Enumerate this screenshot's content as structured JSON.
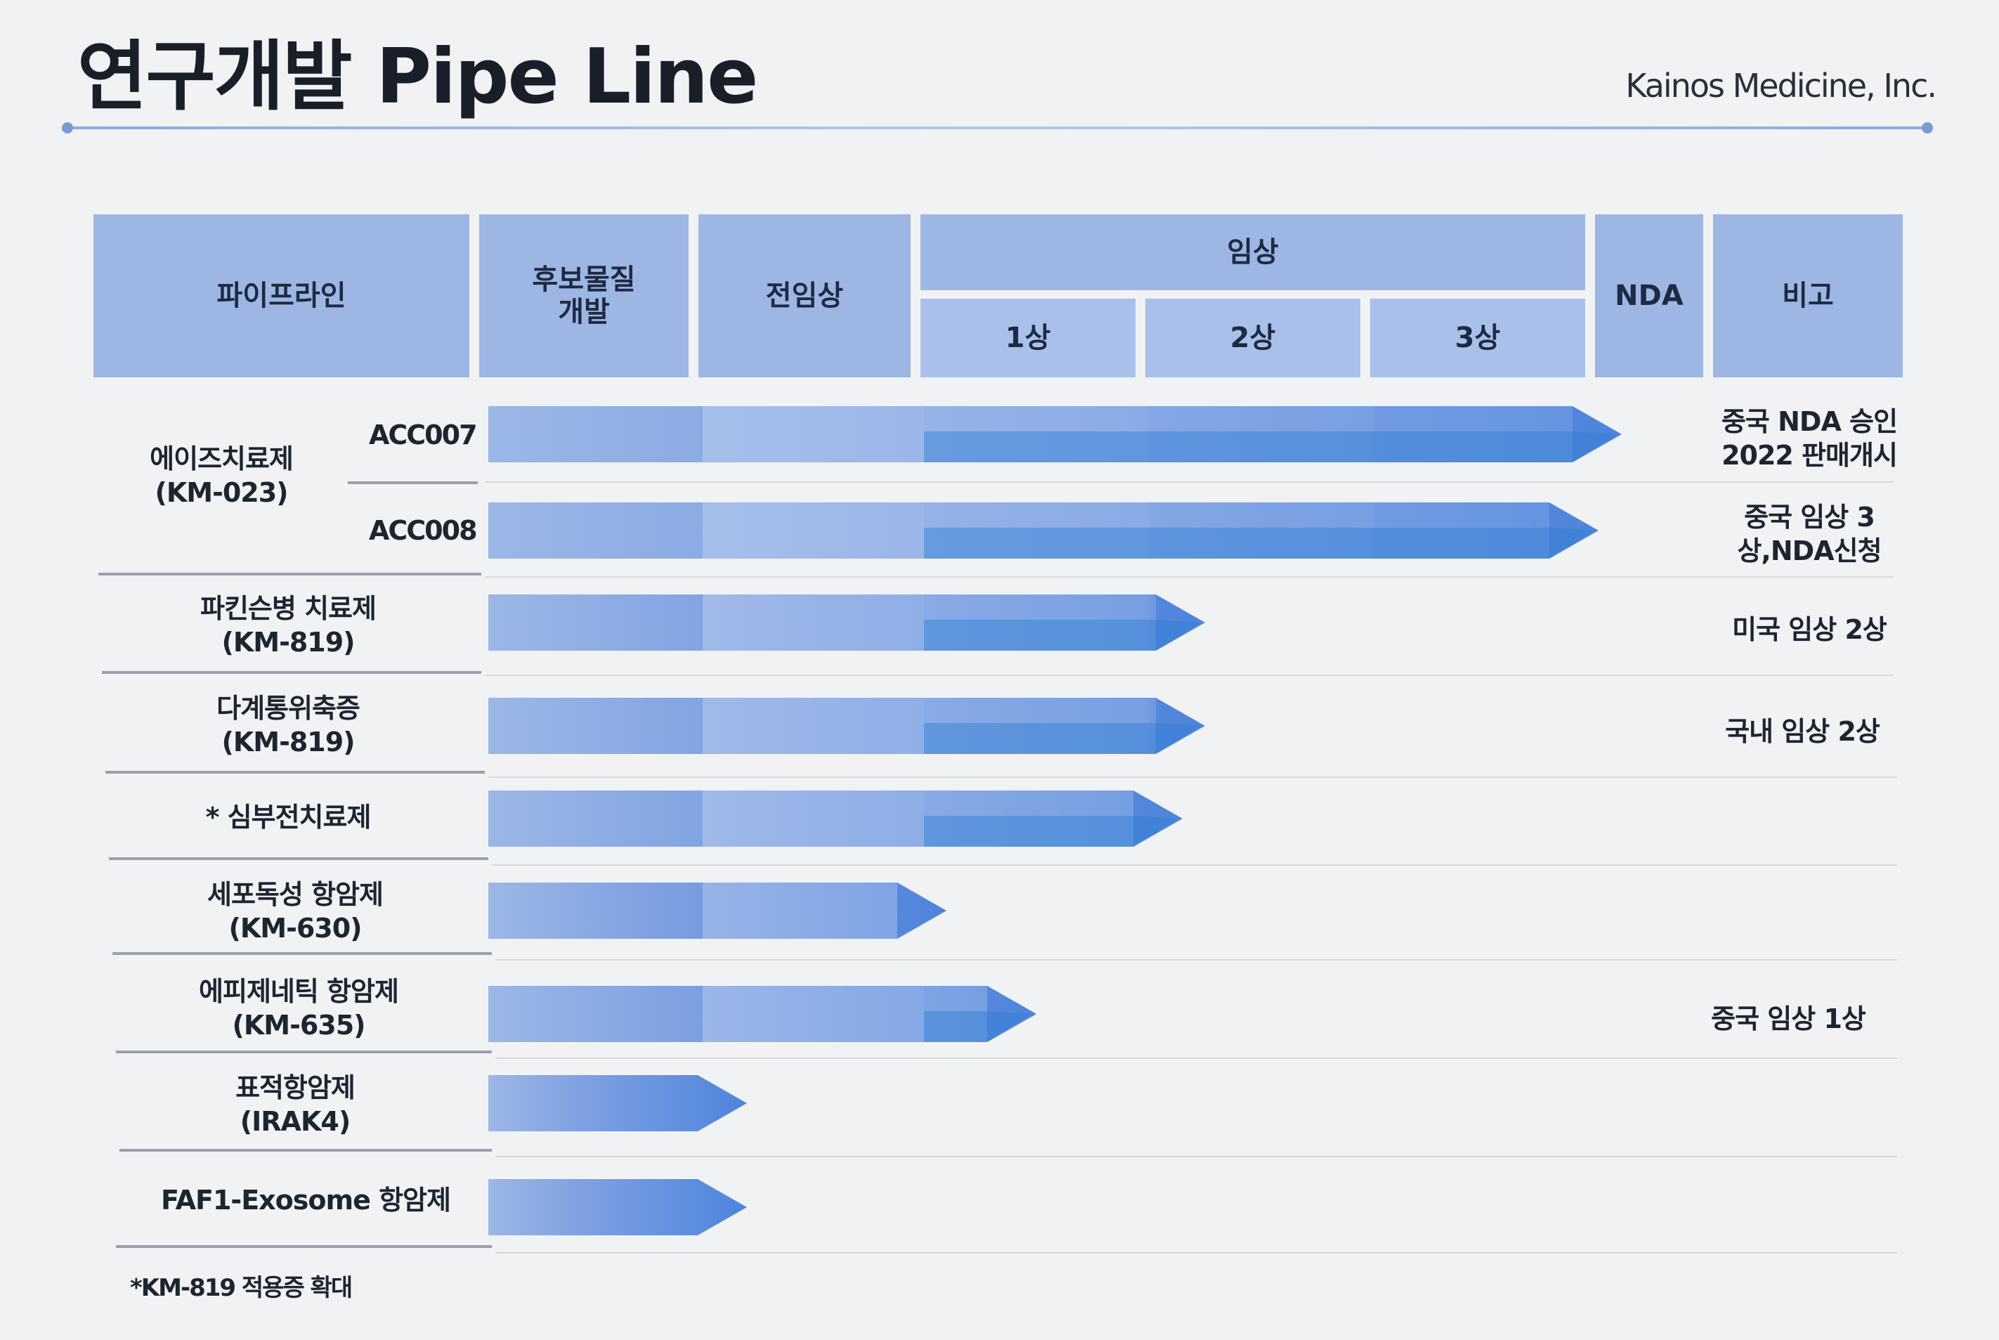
{
  "title": "연구개발 Pipe Line",
  "company": "Kainos Medicine, Inc.",
  "header": {
    "pipeline": "파이프라인",
    "candidate": "후보물질\n개발",
    "preclinical": "전임상",
    "clinical": "임상",
    "phase1": "1상",
    "phase2": "2상",
    "phase3": "3상",
    "nda": "NDA",
    "remarks": "비고"
  },
  "stages": [
    "후보물질 개발",
    "전임상",
    "1상",
    "2상",
    "3상",
    "NDA"
  ],
  "rows": [
    {
      "id": "acc007",
      "label": "",
      "sub": "ACC007",
      "progress_stage": 5.2,
      "note": "중국 NDA 승인\n2022 판매개시"
    },
    {
      "id": "acc008",
      "label": "",
      "sub": "ACC008",
      "progress_stage": 5.0,
      "note": "중국 임상 3\n상,NDA신청"
    },
    {
      "id": "parkinson",
      "label": "파킨슨병 치료제\n(KM-819)",
      "sub": "",
      "progress_stage": 3.25,
      "note": "미국 임상 2상"
    },
    {
      "id": "msa",
      "label": "다계통위축증\n(KM-819)",
      "sub": "",
      "progress_stage": 3.25,
      "note": "국내 임상 2상"
    },
    {
      "id": "heart",
      "label": "* 심부전치료제",
      "sub": "",
      "progress_stage": 3.15,
      "note": ""
    },
    {
      "id": "cyto",
      "label": "세포독성 항암제\n(KM-630)",
      "sub": "",
      "progress_stage": 2.1,
      "note": ""
    },
    {
      "id": "epi",
      "label": "에피제네틱 항암제\n(KM-635)",
      "sub": "",
      "progress_stage": 2.5,
      "note": "중국 임상 1상"
    },
    {
      "id": "target",
      "label": "표적항암제\n(IRAK4)",
      "sub": "",
      "progress_stage": 1.2,
      "note": ""
    },
    {
      "id": "faf1",
      "label": "FAF1-Exosome 항암제",
      "sub": "",
      "progress_stage": 1.2,
      "note": ""
    }
  ],
  "aids_group": {
    "label": "에이즈치료제\n(KM-023)"
  },
  "footnote": "*KM-819 적용증 확대",
  "colors": {
    "header": "#9db6e4",
    "bar_light": "#9bb7e6",
    "bar_mid": "#7fa1e2",
    "bar_dark": "#4e84dc",
    "bar_strip": "#2f7fd2"
  }
}
